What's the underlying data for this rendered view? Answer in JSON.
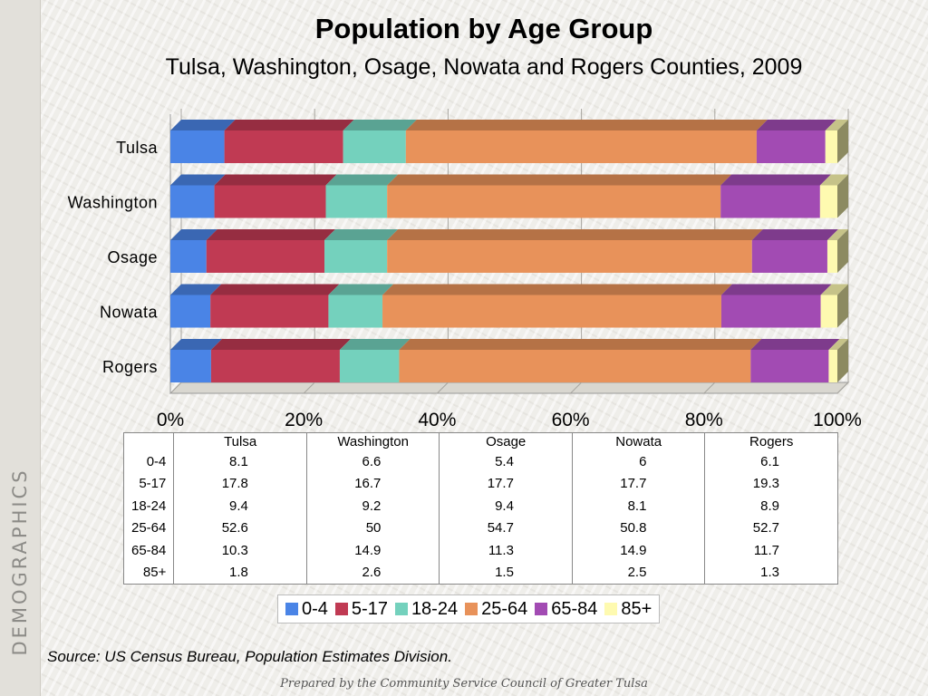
{
  "side_label": "DEMOGRAPHICS",
  "source": "Source:  US Census Bureau, Population Estimates Division.",
  "prepared_by": "Prepared by the Community Service Council of Greater Tulsa",
  "colors": {
    "0-4": "#4a84e6",
    "5-17": "#c03a53",
    "18-24": "#74d1bd",
    "25-64": "#e8925a",
    "65-84": "#a24bb3",
    "85+": "#fefab0"
  },
  "chart_data": {
    "type": "bar",
    "orientation": "horizontal-stacked-100",
    "title": "Population by Age Group",
    "subtitle": "Tulsa, Washington, Osage, Nowata and Rogers Counties, 2009",
    "categories": [
      "Tulsa",
      "Washington",
      "Osage",
      "Nowata",
      "Rogers"
    ],
    "x_ticks": [
      "0%",
      "20%",
      "40%",
      "60%",
      "80%",
      "100%"
    ],
    "xlim": [
      0,
      100
    ],
    "grid": true,
    "legend_position": "bottom",
    "series": [
      {
        "name": "0-4",
        "values": [
          8.1,
          6.6,
          5.4,
          6,
          6.1
        ]
      },
      {
        "name": "5-17",
        "values": [
          17.8,
          16.7,
          17.7,
          17.7,
          19.3
        ]
      },
      {
        "name": "18-24",
        "values": [
          9.4,
          9.2,
          9.4,
          8.1,
          8.9
        ]
      },
      {
        "name": "25-64",
        "values": [
          52.6,
          50,
          54.7,
          50.8,
          52.7
        ]
      },
      {
        "name": "65-84",
        "values": [
          10.3,
          14.9,
          11.3,
          14.9,
          11.7
        ]
      },
      {
        "name": "85+",
        "values": [
          1.8,
          2.6,
          1.5,
          2.5,
          1.3
        ]
      }
    ]
  }
}
